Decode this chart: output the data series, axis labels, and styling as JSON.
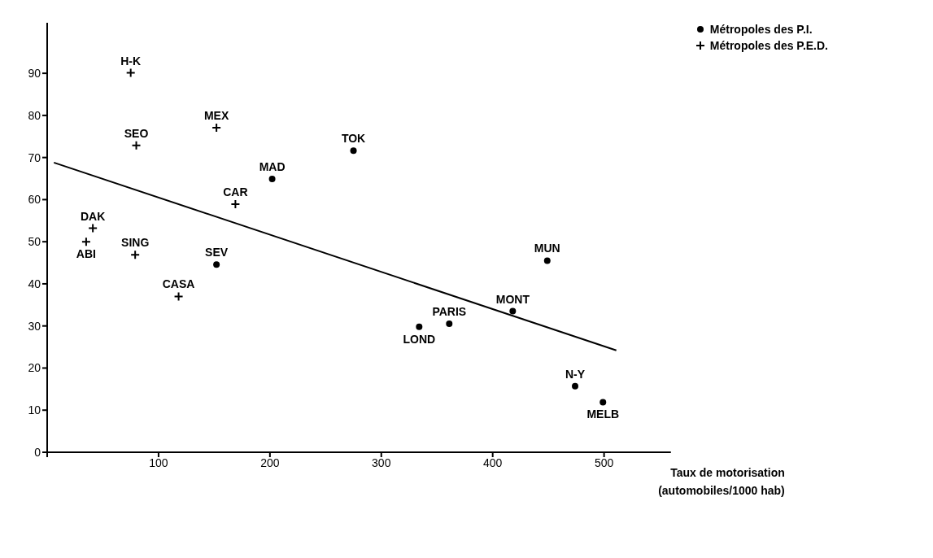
{
  "chart_data": {
    "type": "scatter",
    "xlabel": "Taux de motorisation\n(automobiles/1000 hab)",
    "xlim": [
      0,
      560
    ],
    "xticks": [
      {
        "value": 0,
        "label": null
      },
      100,
      200,
      300,
      400,
      500
    ],
    "ylim": [
      0,
      102
    ],
    "yticks": [
      0,
      10,
      20,
      30,
      40,
      50,
      60,
      70,
      80,
      90
    ],
    "grid": false,
    "legend": "top right",
    "series": [
      {
        "name": "Métropoles des P.I.",
        "marker": "circle",
        "color": "#000000",
        "x": [
          275,
          202,
          152,
          449,
          418,
          334,
          361,
          474,
          499
        ],
        "values": [
          71.6,
          64.9,
          44.6,
          45.5,
          33.5,
          29.8,
          30.5,
          15.7,
          11.9
        ]
      },
      {
        "name": "Métropoles des P.E.D.",
        "marker": "cross",
        "color": "#000000",
        "x": [
          75,
          80,
          152,
          169,
          41,
          35,
          79,
          118
        ],
        "values": [
          90.1,
          72.9,
          77.1,
          58.9,
          53.2,
          50,
          46.9,
          37
        ]
      },
      {
        "type": "line",
        "color": "#000000",
        "x": [
          6,
          511
        ],
        "values": [
          68.8,
          24.2
        ]
      }
    ],
    "annotations": [
      {
        "text": "TOK",
        "x": 275,
        "y": 71.6
      },
      {
        "text": "MAD",
        "x": 202,
        "y": 64.9
      },
      {
        "text": "SEV",
        "x": 152,
        "y": 44.6
      },
      {
        "text": "MUN",
        "x": 449,
        "y": 45.5
      },
      {
        "text": "MONT",
        "x": 418,
        "y": 33.5
      },
      {
        "text": "LOND",
        "x": 334,
        "y": 29.8
      },
      {
        "text": "PARIS",
        "x": 361,
        "y": 30.5
      },
      {
        "text": "N-Y",
        "x": 474,
        "y": 15.7
      },
      {
        "text": "MELB",
        "x": 499,
        "y": 11.9
      },
      {
        "text": "H-K",
        "x": 75,
        "y": 90.1
      },
      {
        "text": "SEO",
        "x": 80,
        "y": 72.9
      },
      {
        "text": "MEX",
        "x": 152,
        "y": 77.1
      },
      {
        "text": "CAR",
        "x": 169,
        "y": 58.9
      },
      {
        "text": "DAK",
        "x": 41,
        "y": 53.2
      },
      {
        "text": "ABI",
        "x": 35,
        "y": 50
      },
      {
        "text": "SING",
        "x": 79,
        "y": 46.9
      },
      {
        "text": "CASA",
        "x": 118,
        "y": 37
      }
    ]
  }
}
